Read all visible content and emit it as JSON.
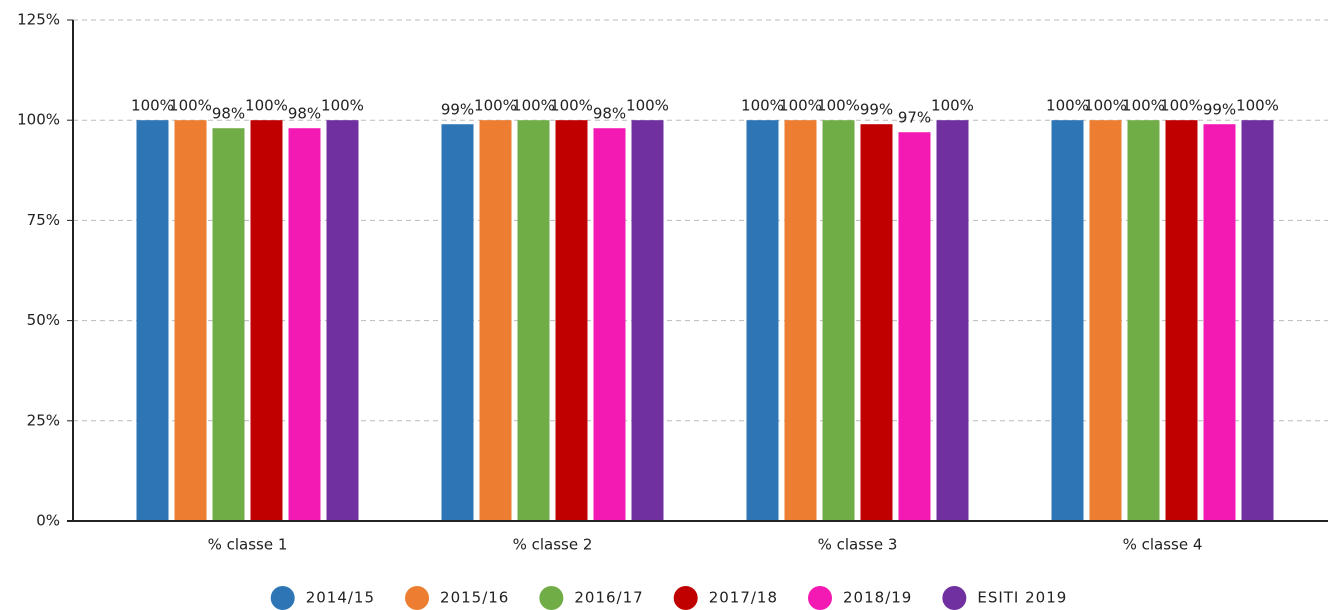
{
  "chart_data": {
    "type": "bar",
    "categories": [
      "% classe 1",
      "% classe 2",
      "% classe 3",
      "% classe 4"
    ],
    "series": [
      {
        "name": "2014/15",
        "color": "#2e75b6",
        "values": [
          100,
          99,
          100,
          100
        ],
        "value_labels": [
          "100%",
          "99%",
          "100%",
          "100%"
        ]
      },
      {
        "name": "2015/16",
        "color": "#ed7d31",
        "values": [
          100,
          100,
          100,
          100
        ],
        "value_labels": [
          "100%",
          "100%",
          "100%",
          "100%"
        ]
      },
      {
        "name": "2016/17",
        "color": "#70ad47",
        "values": [
          98,
          100,
          100,
          100
        ],
        "value_labels": [
          "98%",
          "100%",
          "100%",
          "100%"
        ]
      },
      {
        "name": "2017/18",
        "color": "#c00000",
        "values": [
          100,
          100,
          99,
          100
        ],
        "value_labels": [
          "100%",
          "100%",
          "99%",
          "100%"
        ]
      },
      {
        "name": "2018/19",
        "color": "#f31ab4",
        "values": [
          98,
          98,
          97,
          99
        ],
        "value_labels": [
          "98%",
          "98%",
          "97%",
          "99%"
        ]
      },
      {
        "name": "ESITI 2019",
        "color": "#7030a0",
        "values": [
          100,
          100,
          100,
          100
        ],
        "value_labels": [
          "100%",
          "100%",
          "100%",
          "100%"
        ]
      }
    ],
    "ylim": [
      0,
      125
    ],
    "yticks": [
      {
        "value": 0,
        "label": "0%"
      },
      {
        "value": 25,
        "label": "25%"
      },
      {
        "value": 50,
        "label": "50%"
      },
      {
        "value": 75,
        "label": "75%"
      },
      {
        "value": 100,
        "label": "100%"
      },
      {
        "value": 125,
        "label": "125%"
      }
    ],
    "grid": true,
    "legend": "bottom"
  }
}
